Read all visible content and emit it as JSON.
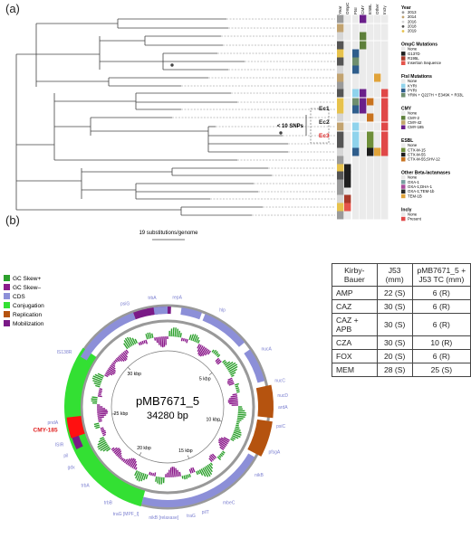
{
  "panel_a": {
    "label": "(a)",
    "scale_text": "19 substitutions/genome",
    "snp_label": "< 10 SNPs",
    "clones": [
      "Ec1",
      "Ec2",
      "Ec3"
    ],
    "col_headers": [
      "Year",
      "OmpC",
      "FtsI",
      "CMY",
      "ESBL",
      "Other",
      "IncIγ"
    ],
    "legend": [
      {
        "title": "Year",
        "items": [
          {
            "label": "2013",
            "color": "#9b9b9b"
          },
          {
            "label": "2014",
            "color": "#c2a370"
          },
          {
            "label": "2016",
            "color": "#d6d6d6"
          },
          {
            "label": "2018",
            "color": "#555555"
          },
          {
            "label": "2019",
            "color": "#e7c24c"
          }
        ]
      },
      {
        "title": "OmpC Mutations",
        "items": [
          {
            "label": "None",
            "color": "#ebebeb"
          },
          {
            "label": "G137D",
            "color": "#1f1f1f"
          },
          {
            "label": "R195L",
            "color": "#a83a2a"
          },
          {
            "label": "Insertion Sequence",
            "color": "#e5544b"
          }
        ]
      },
      {
        "title": "FtsI Mutations",
        "items": [
          {
            "label": "None",
            "color": "#ebebeb"
          },
          {
            "label": "KYRI",
            "color": "#8fd3ec"
          },
          {
            "label": "PYRI",
            "color": "#2f5e8c"
          },
          {
            "label": "YRIN + Q227H + E349K + R33L",
            "color": "#6f8f6e"
          }
        ]
      },
      {
        "title": "CMY",
        "items": [
          {
            "label": "None",
            "color": "#ebebeb"
          },
          {
            "label": "CMY-2",
            "color": "#5d7f3a"
          },
          {
            "label": "CMY-42",
            "color": "#c2a56a"
          },
          {
            "label": "CMY-185",
            "color": "#6a1f8a"
          }
        ]
      },
      {
        "title": "ESBL",
        "items": [
          {
            "label": "None",
            "color": "#ebebeb"
          },
          {
            "label": "CTX-M-15",
            "color": "#6f8f3a"
          },
          {
            "label": "CTX-M-55",
            "color": "#1d1d1d"
          },
          {
            "label": "CTX-M-55;SHV-12",
            "color": "#c8731f"
          }
        ]
      },
      {
        "title": "Other Beta-lactamases",
        "items": [
          {
            "label": "None",
            "color": "#ebebeb"
          },
          {
            "label": "OXA-1",
            "color": "#7aa0a0"
          },
          {
            "label": "OXA-1;DHA-1",
            "color": "#a84c9a"
          },
          {
            "label": "OXA-1;TEM-1b",
            "color": "#2a2a2a"
          },
          {
            "label": "TEM-1B",
            "color": "#e0a33a"
          }
        ]
      },
      {
        "title": "IncIγ",
        "items": [
          {
            "label": "None",
            "color": "#ebebeb"
          },
          {
            "label": "Present",
            "color": "#e04848"
          }
        ]
      }
    ]
  },
  "panel_b": {
    "label": "(b)",
    "plasmid_name": "pMB7671_5",
    "plasmid_size": "34280 bp",
    "ring_ticks": [
      "5 kbp",
      "10 kbp",
      "15 kbp",
      "20 kbp",
      "25 kbp",
      "30 kbp"
    ],
    "highlight_gene": "CMY-185",
    "genes": [
      "trbA",
      "repA",
      "hlp",
      "nucA",
      "nucC",
      "nucD",
      "ardA",
      "psiC",
      "pfsgA",
      "nikB",
      "mbeC",
      "pilT",
      "traG",
      "nikB [relaxase]",
      "traG [MPF_I]",
      "trbB",
      "trbA",
      "gdx",
      "pil",
      "ISIR",
      "pndA",
      "IS138R",
      "psiG"
    ],
    "legend": [
      {
        "label": "GC Skew+",
        "color": "#2ca02c"
      },
      {
        "label": "GC Skew–",
        "color": "#8b1a8b"
      },
      {
        "label": "CDS",
        "color": "#8c8fd8"
      },
      {
        "label": "Conjugation",
        "color": "#33e033"
      },
      {
        "label": "Replication",
        "color": "#b5530f"
      },
      {
        "label": "Mobilization",
        "color": "#7a1a87"
      }
    ]
  },
  "kb_table": {
    "headers": [
      "Kirby-Bauer",
      "J53 (mm)",
      "pMB7671_5 + J53 TC (mm)"
    ],
    "rows": [
      [
        "AMP",
        "22 (S)",
        "6 (R)"
      ],
      [
        "CAZ",
        "30 (S)",
        "6 (R)"
      ],
      [
        "CAZ + APB",
        "30 (S)",
        "6 (R)"
      ],
      [
        "CZA",
        "30 (S)",
        "10 (R)"
      ],
      [
        "FOX",
        "20 (S)",
        "6 (R)"
      ],
      [
        "MEM",
        "28 (S)",
        "25 (S)"
      ]
    ]
  }
}
